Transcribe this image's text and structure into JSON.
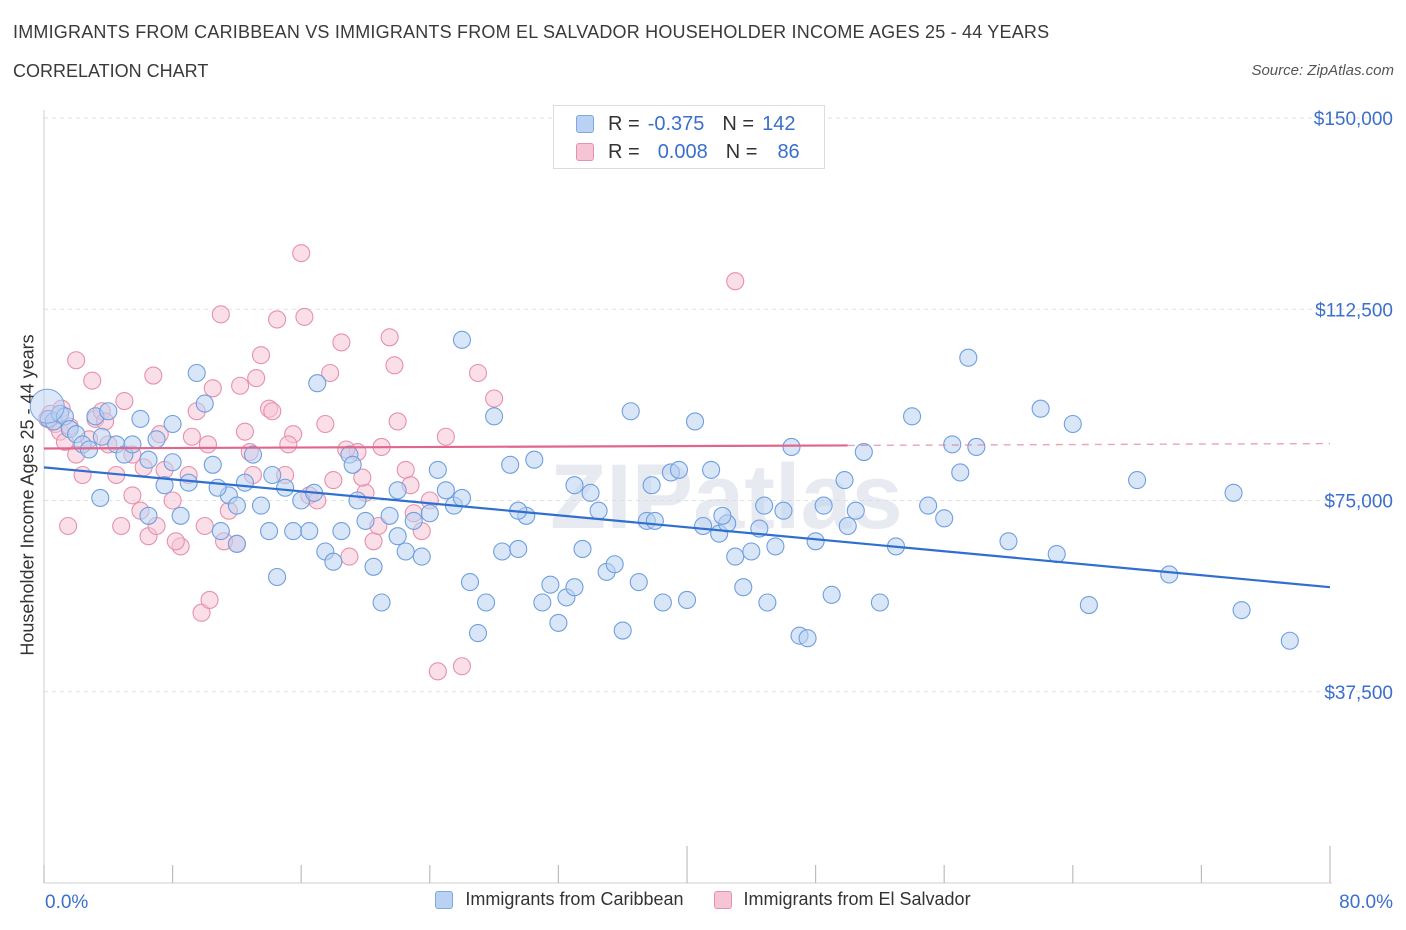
{
  "title": "IMMIGRANTS FROM CARIBBEAN VS IMMIGRANTS FROM EL SALVADOR HOUSEHOLDER INCOME AGES 25 - 44 YEARS",
  "subtitle": "CORRELATION CHART",
  "source": "Source: ZipAtlas.com",
  "watermark": "ZIPatlas",
  "legend_top": {
    "rows": [
      {
        "r_label": "R =",
        "r_value": "-0.375",
        "n_label": "N =",
        "n_value": "142",
        "color": "#7fa8e0",
        "fill": "#b9d1f3"
      },
      {
        "r_label": "R =",
        "r_value": "0.008",
        "n_label": "N =",
        "n_value": "86",
        "color": "#e890ab",
        "fill": "#f6c5d5"
      }
    ]
  },
  "chart_data": {
    "type": "scatter",
    "title": "IMMIGRANTS FROM CARIBBEAN VS IMMIGRANTS FROM EL SALVADOR HOUSEHOLDER INCOME AGES 25 - 44 YEARS",
    "xlabel": "",
    "ylabel": "Householder Income Ages 25 - 44 years",
    "xlim": [
      0,
      80
    ],
    "ylim": [
      0,
      150000
    ],
    "x_tick_labels": [
      "0.0%",
      "80.0%"
    ],
    "y_ticks": [
      37500,
      75000,
      112500,
      150000
    ],
    "y_tick_labels": [
      "$37,500",
      "$75,000",
      "$112,500",
      "$150,000"
    ],
    "grid": true,
    "legend": "bottom",
    "series": [
      {
        "name": "Immigrants from Caribbean",
        "color": "#6f9fe0",
        "fill": "#b9d1f3",
        "trend": {
          "x": [
            0,
            80
          ],
          "y": [
            81500,
            58000
          ],
          "color": "#2f6fd0"
        },
        "points": [
          [
            0.3,
            91000
          ],
          [
            0.6,
            90500
          ],
          [
            1.0,
            92000
          ],
          [
            1.3,
            91500
          ],
          [
            1.6,
            89000
          ],
          [
            2.0,
            88000
          ],
          [
            2.4,
            86000
          ],
          [
            2.8,
            85000
          ],
          [
            3.2,
            91500
          ],
          [
            3.6,
            87500
          ],
          [
            4.0,
            92500
          ],
          [
            4.5,
            86000
          ],
          [
            5.0,
            84000
          ],
          [
            5.5,
            86000
          ],
          [
            6.0,
            91000
          ],
          [
            6.5,
            83000
          ],
          [
            7.0,
            87000
          ],
          [
            7.5,
            78000
          ],
          [
            8.0,
            82500
          ],
          [
            8.5,
            72000
          ],
          [
            9.0,
            78500
          ],
          [
            9.5,
            100000
          ],
          [
            10.0,
            94000
          ],
          [
            10.5,
            82000
          ],
          [
            11.0,
            69000
          ],
          [
            11.5,
            76000
          ],
          [
            12.0,
            74000
          ],
          [
            12.5,
            78500
          ],
          [
            13.0,
            84000
          ],
          [
            13.5,
            74000
          ],
          [
            14.0,
            69000
          ],
          [
            14.5,
            60000
          ],
          [
            15.0,
            77500
          ],
          [
            15.5,
            69000
          ],
          [
            16.0,
            75000
          ],
          [
            16.5,
            69000
          ],
          [
            17.0,
            98000
          ],
          [
            17.5,
            65000
          ],
          [
            18.0,
            63000
          ],
          [
            18.5,
            69000
          ],
          [
            19.0,
            84000
          ],
          [
            19.5,
            75000
          ],
          [
            20.0,
            71000
          ],
          [
            20.5,
            62000
          ],
          [
            21.0,
            55000
          ],
          [
            21.5,
            72000
          ],
          [
            22.0,
            77000
          ],
          [
            22.5,
            65000
          ],
          [
            23.0,
            71000
          ],
          [
            23.5,
            64000
          ],
          [
            24.0,
            72500
          ],
          [
            24.5,
            81000
          ],
          [
            25.0,
            77000
          ],
          [
            25.5,
            74000
          ],
          [
            26.0,
            75500
          ],
          [
            26.5,
            59000
          ],
          [
            27.0,
            49000
          ],
          [
            27.5,
            55000
          ],
          [
            28.0,
            91500
          ],
          [
            28.5,
            65000
          ],
          [
            29.0,
            82000
          ],
          [
            29.5,
            65500
          ],
          [
            30.0,
            72000
          ],
          [
            30.5,
            83000
          ],
          [
            31.0,
            55000
          ],
          [
            31.5,
            58500
          ],
          [
            32.0,
            51000
          ],
          [
            32.5,
            56000
          ],
          [
            33.0,
            78000
          ],
          [
            33.5,
            65500
          ],
          [
            34.0,
            76500
          ],
          [
            34.5,
            73000
          ],
          [
            35.0,
            61000
          ],
          [
            35.5,
            62500
          ],
          [
            36.0,
            49500
          ],
          [
            36.5,
            92500
          ],
          [
            37.0,
            59000
          ],
          [
            37.5,
            71000
          ],
          [
            38.0,
            71000
          ],
          [
            38.5,
            55000
          ],
          [
            39.0,
            80500
          ],
          [
            39.5,
            81000
          ],
          [
            40.0,
            55500
          ],
          [
            40.5,
            90500
          ],
          [
            41.0,
            70000
          ],
          [
            41.5,
            81000
          ],
          [
            42.0,
            68500
          ],
          [
            42.5,
            70500
          ],
          [
            43.0,
            64000
          ],
          [
            43.5,
            58000
          ],
          [
            44.0,
            65000
          ],
          [
            44.5,
            69500
          ],
          [
            45.0,
            55000
          ],
          [
            45.5,
            66000
          ],
          [
            46.0,
            73000
          ],
          [
            46.5,
            85500
          ],
          [
            47.0,
            48500
          ],
          [
            47.5,
            48000
          ],
          [
            48.0,
            67000
          ],
          [
            48.5,
            74000
          ],
          [
            49.0,
            56500
          ],
          [
            50.0,
            70000
          ],
          [
            50.5,
            73000
          ],
          [
            51.0,
            84500
          ],
          [
            52.0,
            55000
          ],
          [
            53.0,
            66000
          ],
          [
            54.0,
            91500
          ],
          [
            55.0,
            74000
          ],
          [
            56.0,
            71500
          ],
          [
            56.5,
            86000
          ],
          [
            57.0,
            80500
          ],
          [
            57.5,
            103000
          ],
          [
            58.0,
            85500
          ],
          [
            60.0,
            67000
          ],
          [
            62.0,
            93000
          ],
          [
            63.0,
            64500
          ],
          [
            64.0,
            90000
          ],
          [
            65.0,
            54500
          ],
          [
            68.0,
            79000
          ],
          [
            70.0,
            60500
          ],
          [
            74.0,
            76500
          ],
          [
            74.5,
            53500
          ],
          [
            77.5,
            47500
          ],
          [
            26.0,
            106500
          ],
          [
            12.0,
            66500
          ],
          [
            6.5,
            72000
          ],
          [
            8.0,
            90000
          ],
          [
            3.5,
            75500
          ],
          [
            10.8,
            77500
          ],
          [
            16.8,
            76500
          ],
          [
            14.2,
            80000
          ],
          [
            19.2,
            82000
          ],
          [
            22.0,
            68000
          ],
          [
            29.5,
            73000
          ],
          [
            33.0,
            58000
          ],
          [
            37.8,
            78000
          ],
          [
            42.2,
            72000
          ],
          [
            44.8,
            74000
          ],
          [
            49.8,
            79000
          ]
        ]
      },
      {
        "name": "Immigrants from El Salvador",
        "color": "#e890ab",
        "fill": "#f6c5d5",
        "trend": {
          "x": [
            0,
            50
          ],
          "y": [
            85200,
            85800
          ],
          "dashed_to": 80,
          "color": "#e0668c"
        },
        "points": [
          [
            0.4,
            92000
          ],
          [
            0.7,
            90000
          ],
          [
            1.0,
            88500
          ],
          [
            1.3,
            86500
          ],
          [
            1.6,
            89500
          ],
          [
            2.0,
            84000
          ],
          [
            2.4,
            80000
          ],
          [
            2.8,
            87000
          ],
          [
            3.2,
            91000
          ],
          [
            3.6,
            92500
          ],
          [
            4.0,
            86000
          ],
          [
            4.5,
            80000
          ],
          [
            5.0,
            94500
          ],
          [
            5.5,
            76000
          ],
          [
            6.0,
            73000
          ],
          [
            6.5,
            68000
          ],
          [
            7.0,
            70000
          ],
          [
            7.5,
            81000
          ],
          [
            8.0,
            75000
          ],
          [
            8.5,
            66000
          ],
          [
            9.0,
            80000
          ],
          [
            9.5,
            92500
          ],
          [
            10.0,
            70000
          ],
          [
            10.5,
            97000
          ],
          [
            11.0,
            111500
          ],
          [
            11.5,
            73000
          ],
          [
            12.0,
            66500
          ],
          [
            12.5,
            88500
          ],
          [
            13.0,
            80000
          ],
          [
            13.5,
            103500
          ],
          [
            14.0,
            93000
          ],
          [
            14.5,
            110500
          ],
          [
            15.0,
            80000
          ],
          [
            15.5,
            88000
          ],
          [
            16.0,
            123500
          ],
          [
            16.5,
            76000
          ],
          [
            17.0,
            75000
          ],
          [
            17.5,
            90000
          ],
          [
            18.0,
            79000
          ],
          [
            18.5,
            106000
          ],
          [
            19.0,
            64000
          ],
          [
            19.5,
            84500
          ],
          [
            20.0,
            76500
          ],
          [
            20.5,
            67000
          ],
          [
            21.0,
            85500
          ],
          [
            21.5,
            107000
          ],
          [
            22.0,
            90500
          ],
          [
            22.5,
            81000
          ],
          [
            23.0,
            72500
          ],
          [
            23.5,
            69000
          ],
          [
            24.0,
            75000
          ],
          [
            24.5,
            41500
          ],
          [
            25.0,
            87500
          ],
          [
            26.0,
            42500
          ],
          [
            27.0,
            100000
          ],
          [
            28.0,
            95000
          ],
          [
            3.0,
            98500
          ],
          [
            2.0,
            102500
          ],
          [
            1.5,
            70000
          ],
          [
            4.8,
            70000
          ],
          [
            6.2,
            81500
          ],
          [
            7.2,
            88000
          ],
          [
            8.2,
            67000
          ],
          [
            9.2,
            87500
          ],
          [
            10.2,
            86000
          ],
          [
            11.2,
            67000
          ],
          [
            12.2,
            97500
          ],
          [
            13.2,
            99000
          ],
          [
            14.2,
            92500
          ],
          [
            15.2,
            86000
          ],
          [
            16.2,
            111000
          ],
          [
            17.8,
            100000
          ],
          [
            18.8,
            85000
          ],
          [
            19.8,
            79500
          ],
          [
            20.8,
            70000
          ],
          [
            21.8,
            101500
          ],
          [
            22.8,
            78000
          ],
          [
            43.0,
            118000
          ],
          [
            1.1,
            93000
          ],
          [
            0.2,
            91000
          ],
          [
            5.5,
            84000
          ],
          [
            6.8,
            99500
          ],
          [
            9.8,
            53000
          ],
          [
            10.3,
            55500
          ],
          [
            12.8,
            84500
          ],
          [
            3.8,
            90500
          ]
        ]
      }
    ]
  }
}
